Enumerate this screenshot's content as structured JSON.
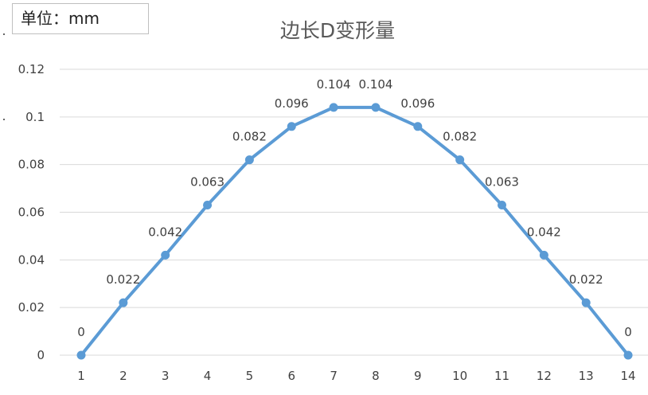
{
  "unit_label": "单位：mm",
  "chart_data": {
    "type": "line",
    "title": "边长D变形量",
    "x": [
      1,
      2,
      3,
      4,
      5,
      6,
      7,
      8,
      9,
      10,
      11,
      12,
      13,
      14
    ],
    "series": [
      {
        "values": [
          0,
          0.022,
          0.042,
          0.063,
          0.082,
          0.096,
          0.104,
          0.104,
          0.096,
          0.082,
          0.063,
          0.042,
          0.022,
          0
        ]
      }
    ],
    "data_labels": [
      "0",
      "0.022",
      "0.042",
      "0.063",
      "0.082",
      "0.096",
      "0.104",
      "0.104",
      "0.096",
      "0.082",
      "0.063",
      "0.042",
      "0.022",
      "0"
    ],
    "yticks": [
      0,
      0.02,
      0.04,
      0.06,
      0.08,
      0.1,
      0.12
    ],
    "ytick_labels": [
      "0",
      "0.02",
      "0.04",
      "0.06",
      "0.08",
      "0.1",
      "0.12"
    ],
    "xtick_labels": [
      "1",
      "2",
      "3",
      "4",
      "5",
      "6",
      "7",
      "8",
      "9",
      "10",
      "11",
      "12",
      "13",
      "14"
    ],
    "ylim": [
      0,
      0.12
    ],
    "grid": true,
    "legend": "none",
    "colors": {
      "series": "#5b9bd5",
      "grid": "#d9d9d9"
    }
  }
}
